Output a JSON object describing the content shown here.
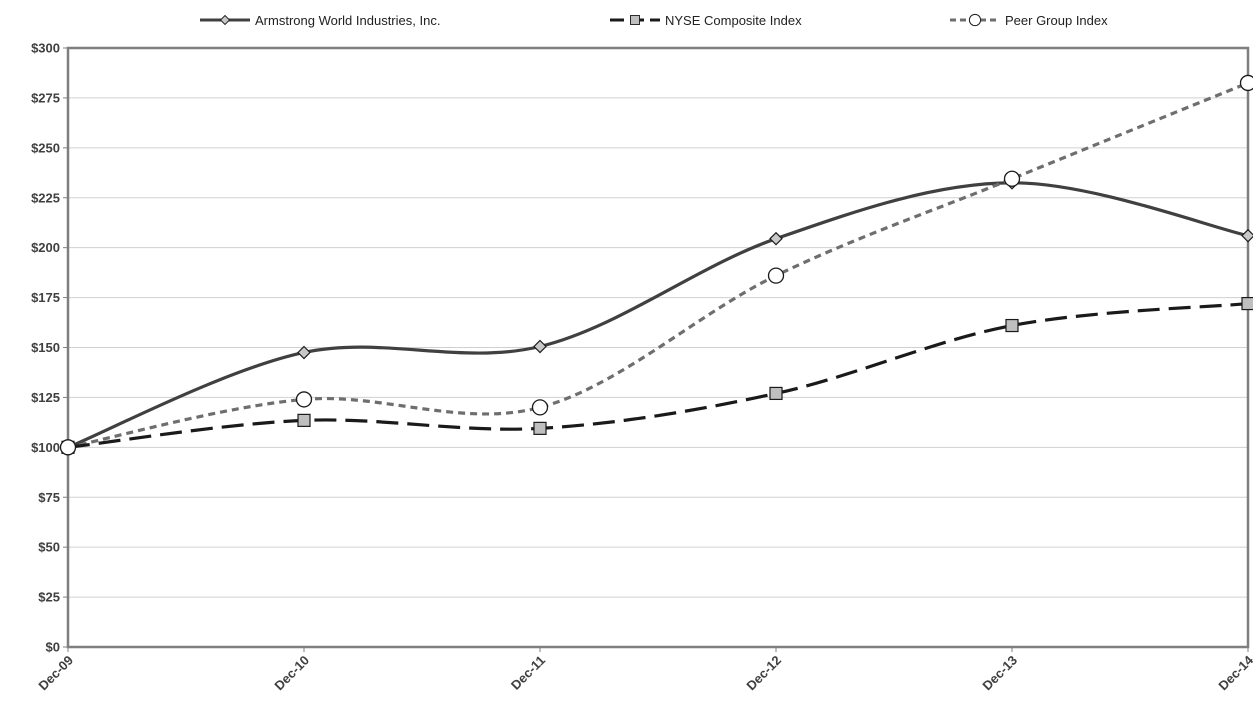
{
  "chart_data": {
    "type": "line",
    "title": "",
    "xlabel": "",
    "ylabel": "",
    "categories": [
      "Dec-09",
      "Dec-10",
      "Dec-11",
      "Dec-12",
      "Dec-13",
      "Dec-14"
    ],
    "ylim": [
      0,
      300
    ],
    "yticks": [
      0,
      25,
      50,
      75,
      100,
      125,
      150,
      175,
      200,
      225,
      250,
      275,
      300
    ],
    "ytick_labels": [
      "$0",
      "$25",
      "$50",
      "$75",
      "$100",
      "$125",
      "$150",
      "$175",
      "$200",
      "$225",
      "$250",
      "$275",
      "$300"
    ],
    "grid": true,
    "legend_position": "top",
    "series": [
      {
        "name": "Armstrong World Industries, Inc.",
        "values": [
          100,
          147.5,
          150.5,
          204.5,
          232.5,
          206
        ],
        "line": "solid",
        "marker": "diamond",
        "color": "#404040"
      },
      {
        "name": "NYSE Composite Index",
        "values": [
          100,
          113.5,
          109.5,
          127,
          161,
          172
        ],
        "line": "long-dash",
        "marker": "square",
        "color": "#1a1a1a"
      },
      {
        "name": "Peer Group Index",
        "values": [
          100,
          124,
          120,
          186,
          234.5,
          282.5
        ],
        "line": "short-dash",
        "marker": "circle",
        "color": "#6e6e6e"
      }
    ]
  }
}
